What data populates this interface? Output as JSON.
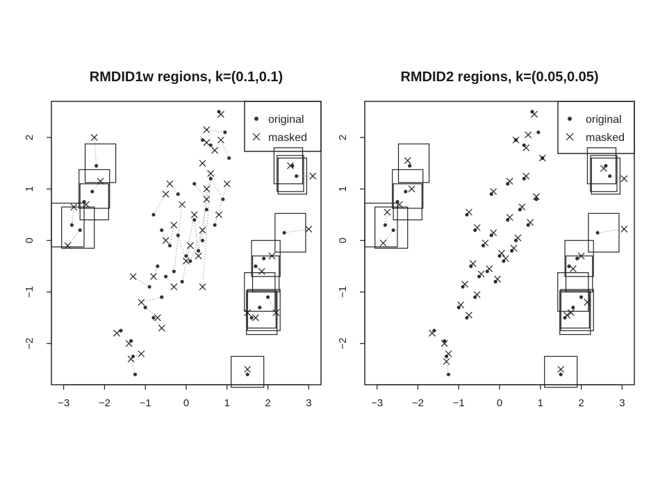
{
  "chart_data": [
    {
      "type": "scatter",
      "title": "RMDID1w regions, k=(0.1,0.1)",
      "xlim": [
        -3.3,
        3.3
      ],
      "ylim": [
        -2.8,
        2.7
      ],
      "xticks": [
        -3,
        -2,
        -1,
        0,
        1,
        2,
        3
      ],
      "yticks": [
        -2,
        -1,
        0,
        1,
        2
      ],
      "xtick_labels": [
        "−3",
        "−2",
        "−1",
        "0",
        "1",
        "2",
        "3"
      ],
      "ytick_labels": [
        "−2",
        "−1",
        "0",
        "1",
        "2"
      ],
      "legend": {
        "position": "top-right",
        "entries": [
          "original",
          "masked"
        ]
      },
      "series": [
        {
          "name": "original",
          "marker": "dot",
          "x": [
            -2.2,
            -2.6,
            -2.8,
            -2.5,
            -2.3,
            2.6,
            2.7,
            2.4,
            1.9,
            1.7,
            2.0,
            1.8,
            1.6,
            1.5,
            -1.6,
            -1.35,
            -1.3,
            -1.25,
            0.8,
            0.95,
            0.4,
            0.6,
            1.05,
            -0.8,
            -0.6,
            -0.4,
            -0.2,
            0.0,
            0.2,
            0.4,
            -0.7,
            -0.5,
            -0.3,
            -0.1,
            0.1,
            0.3,
            0.5,
            -0.9,
            -0.6,
            0.6,
            -0.2,
            0.2,
            0.7,
            -1.0,
            -0.8,
            0.9
          ],
          "y": [
            1.45,
            0.2,
            0.3,
            0.75,
            0.95,
            1.45,
            1.25,
            0.15,
            -0.35,
            -0.5,
            -1.1,
            -1.3,
            -1.5,
            -2.6,
            -1.75,
            -1.95,
            -2.25,
            -2.6,
            2.5,
            2.1,
            1.95,
            1.85,
            1.6,
            0.5,
            0.2,
            -0.1,
            0.1,
            -0.3,
            0.4,
            0.0,
            -0.5,
            -0.7,
            -0.6,
            -0.8,
            -0.4,
            -0.2,
            0.6,
            -0.9,
            -1.1,
            1.2,
            0.9,
            1.1,
            0.3,
            -1.3,
            -1.5,
            0.8
          ]
        },
        {
          "name": "masked",
          "marker": "cross",
          "x": [
            -2.25,
            -2.9,
            -2.75,
            -2.45,
            -2.1,
            2.55,
            3.1,
            3.0,
            2.1,
            1.85,
            2.2,
            1.7,
            1.5,
            1.5,
            -1.7,
            -1.4,
            -1.1,
            -1.35,
            0.85,
            0.5,
            0.5,
            0.7,
            0.85,
            -0.5,
            -0.5,
            -0.3,
            0.0,
            0.2,
            0.3,
            0.5,
            -0.8,
            -0.3,
            -0.1,
            0.1,
            0.4,
            0.6,
            0.8,
            -1.3,
            -1.1,
            0.4,
            -0.4,
            0.5,
            1.0,
            -0.7,
            -0.6,
            0.4
          ],
          "y": [
            2.0,
            -0.1,
            0.65,
            0.7,
            1.15,
            1.45,
            1.25,
            0.22,
            -0.3,
            -0.6,
            -1.4,
            -1.5,
            -1.4,
            -2.5,
            -1.8,
            -2.0,
            -2.2,
            -2.3,
            2.45,
            2.15,
            1.9,
            1.75,
            1.95,
            0.9,
            0.0,
            0.3,
            -0.4,
            0.5,
            -0.3,
            1.0,
            -0.7,
            -0.9,
            0.7,
            -0.1,
            0.2,
            1.3,
            0.5,
            -0.7,
            -1.2,
            -0.9,
            1.1,
            0.8,
            1.1,
            -1.5,
            -1.7,
            1.5
          ]
        }
      ],
      "regions": [
        {
          "center": [
            -2.1,
            1.5
          ],
          "w": 0.75,
          "h": 0.75
        },
        {
          "center": [
            -2.25,
            1.0
          ],
          "w": 0.75,
          "h": 0.75
        },
        {
          "center": [
            -2.25,
            0.75
          ],
          "w": 0.7,
          "h": 0.7
        },
        {
          "center": [
            -2.65,
            0.25
          ],
          "w": 0.8,
          "h": 0.8
        },
        {
          "center": [
            -2.9,
            0.3
          ],
          "w": 0.8,
          "h": 0.85
        },
        {
          "center": [
            2.5,
            1.45
          ],
          "w": 0.7,
          "h": 0.7
        },
        {
          "center": [
            2.6,
            1.25
          ],
          "w": 0.7,
          "h": 0.7
        },
        {
          "center": [
            2.55,
            1.3
          ],
          "w": 0.65,
          "h": 0.7
        },
        {
          "center": [
            2.55,
            0.15
          ],
          "w": 0.75,
          "h": 0.75
        },
        {
          "center": [
            1.95,
            -0.35
          ],
          "w": 0.7,
          "h": 0.7
        },
        {
          "center": [
            1.95,
            -0.65
          ],
          "w": 0.65,
          "h": 0.7
        },
        {
          "center": [
            1.8,
            -1.0
          ],
          "w": 0.75,
          "h": 0.75
        },
        {
          "center": [
            1.85,
            -1.4
          ],
          "w": 0.75,
          "h": 0.85
        },
        {
          "center": [
            1.9,
            -1.35
          ],
          "w": 0.8,
          "h": 0.8
        },
        {
          "center": [
            1.85,
            -1.35
          ],
          "w": 0.7,
          "h": 0.7
        },
        {
          "center": [
            1.5,
            -2.55
          ],
          "w": 0.8,
          "h": 0.6
        }
      ]
    },
    {
      "type": "scatter",
      "title": "RMDID2 regions, k=(0.05,0.05)",
      "xlim": [
        -3.3,
        3.3
      ],
      "ylim": [
        -2.8,
        2.7
      ],
      "xticks": [
        -3,
        -2,
        -1,
        0,
        1,
        2,
        3
      ],
      "yticks": [
        -2,
        -1,
        0,
        1,
        2
      ],
      "xtick_labels": [
        "−3",
        "−2",
        "−1",
        "0",
        "1",
        "2",
        "3"
      ],
      "ytick_labels": [
        "−2",
        "−1",
        "0",
        "1",
        "2"
      ],
      "legend": {
        "position": "top-right",
        "entries": [
          "original",
          "masked"
        ]
      },
      "series": [
        {
          "name": "original",
          "marker": "dot",
          "x": [
            -2.2,
            -2.6,
            -2.8,
            -2.5,
            -2.3,
            2.6,
            2.7,
            2.4,
            1.9,
            1.7,
            2.0,
            1.8,
            1.6,
            1.5,
            -1.6,
            -1.35,
            -1.3,
            -1.25,
            0.8,
            0.95,
            0.4,
            0.6,
            1.05,
            -0.8,
            -0.6,
            -0.4,
            -0.2,
            0.0,
            0.2,
            0.4,
            -0.7,
            -0.5,
            -0.3,
            -0.1,
            0.1,
            0.3,
            0.5,
            -0.9,
            -0.6,
            0.6,
            -0.2,
            0.2,
            0.7,
            -1.0,
            -0.8,
            0.9
          ],
          "y": [
            1.45,
            0.2,
            0.3,
            0.75,
            0.95,
            1.45,
            1.25,
            0.15,
            -0.35,
            -0.5,
            -1.1,
            -1.3,
            -1.5,
            -2.6,
            -1.75,
            -1.95,
            -2.25,
            -2.6,
            2.5,
            2.1,
            1.95,
            1.85,
            1.6,
            0.5,
            0.2,
            -0.1,
            0.1,
            -0.3,
            0.4,
            0.0,
            -0.5,
            -0.7,
            -0.6,
            -0.8,
            -0.4,
            -0.2,
            0.6,
            -0.9,
            -1.1,
            1.2,
            0.9,
            1.1,
            0.3,
            -1.3,
            -1.5,
            0.8
          ]
        },
        {
          "name": "masked",
          "marker": "cross",
          "x": [
            -2.25,
            -2.85,
            -2.75,
            -2.45,
            -2.15,
            2.55,
            3.05,
            3.05,
            2.0,
            1.8,
            2.15,
            1.75,
            1.65,
            1.5,
            -1.65,
            -1.35,
            -1.25,
            -1.3,
            0.85,
            0.7,
            0.4,
            0.65,
            1.05,
            -0.75,
            -0.55,
            -0.35,
            -0.15,
            0.05,
            0.25,
            0.45,
            -0.65,
            -0.45,
            -0.25,
            -0.05,
            0.15,
            0.35,
            0.55,
            -0.85,
            -0.55,
            0.65,
            -0.15,
            0.25,
            0.75,
            -0.95,
            -0.75,
            0.9
          ],
          "y": [
            1.55,
            -0.05,
            0.55,
            0.7,
            1.0,
            1.4,
            1.2,
            0.22,
            -0.3,
            -0.55,
            -1.2,
            -1.4,
            -1.45,
            -2.5,
            -1.8,
            -2.0,
            -2.2,
            -2.35,
            2.45,
            2.05,
            1.95,
            1.8,
            1.6,
            0.55,
            0.25,
            -0.05,
            0.15,
            -0.25,
            0.45,
            0.05,
            -0.45,
            -0.65,
            -0.55,
            -0.75,
            -0.35,
            -0.15,
            0.65,
            -0.85,
            -1.05,
            1.25,
            0.95,
            1.15,
            0.35,
            -1.25,
            -1.45,
            0.85
          ]
        }
      ],
      "regions": [
        {
          "center": [
            -2.1,
            1.5
          ],
          "w": 0.75,
          "h": 0.75
        },
        {
          "center": [
            -2.25,
            1.0
          ],
          "w": 0.75,
          "h": 0.75
        },
        {
          "center": [
            -2.25,
            0.75
          ],
          "w": 0.7,
          "h": 0.7
        },
        {
          "center": [
            -2.65,
            0.25
          ],
          "w": 0.8,
          "h": 0.8
        },
        {
          "center": [
            -2.9,
            0.3
          ],
          "w": 0.8,
          "h": 0.85
        },
        {
          "center": [
            2.5,
            1.45
          ],
          "w": 0.7,
          "h": 0.7
        },
        {
          "center": [
            2.6,
            1.25
          ],
          "w": 0.7,
          "h": 0.7
        },
        {
          "center": [
            2.55,
            1.3
          ],
          "w": 0.65,
          "h": 0.7
        },
        {
          "center": [
            2.55,
            0.15
          ],
          "w": 0.75,
          "h": 0.75
        },
        {
          "center": [
            1.95,
            -0.35
          ],
          "w": 0.7,
          "h": 0.7
        },
        {
          "center": [
            1.95,
            -0.65
          ],
          "w": 0.65,
          "h": 0.7
        },
        {
          "center": [
            1.8,
            -1.0
          ],
          "w": 0.75,
          "h": 0.75
        },
        {
          "center": [
            1.85,
            -1.4
          ],
          "w": 0.75,
          "h": 0.85
        },
        {
          "center": [
            1.9,
            -1.35
          ],
          "w": 0.8,
          "h": 0.8
        },
        {
          "center": [
            1.85,
            -1.35
          ],
          "w": 0.7,
          "h": 0.7
        },
        {
          "center": [
            1.5,
            -2.55
          ],
          "w": 0.8,
          "h": 0.6
        }
      ]
    }
  ]
}
